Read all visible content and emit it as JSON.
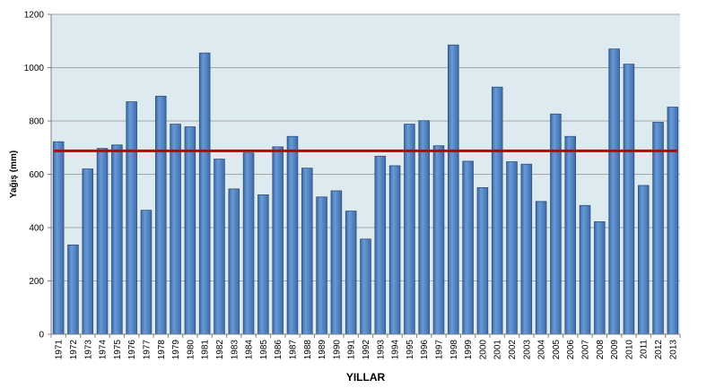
{
  "chart_data": {
    "type": "bar",
    "title": "",
    "xlabel": "YILLAR",
    "ylabel": "Yağış (mm)",
    "ylim": [
      0,
      1200
    ],
    "yticks": [
      0,
      200,
      400,
      600,
      800,
      1000,
      1200
    ],
    "grid": true,
    "legend": "none",
    "categories": [
      "1971",
      "1972",
      "1973",
      "1974",
      "1975",
      "1976",
      "1977",
      "1978",
      "1979",
      "1980",
      "1981",
      "1982",
      "1983",
      "1984",
      "1985",
      "1986",
      "1987",
      "1988",
      "1989",
      "1990",
      "1991",
      "1992",
      "1993",
      "1994",
      "1995",
      "1996",
      "1997",
      "1998",
      "1999",
      "2000",
      "2001",
      "2002",
      "2003",
      "2004",
      "2005",
      "2006",
      "2007",
      "2008",
      "2009",
      "2010",
      "2011",
      "2012",
      "2013"
    ],
    "values": [
      722,
      335,
      620,
      697,
      710,
      872,
      465,
      893,
      788,
      778,
      1055,
      657,
      545,
      680,
      523,
      703,
      742,
      623,
      515,
      538,
      462,
      357,
      668,
      632,
      788,
      801,
      707,
      1085,
      649,
      550,
      927,
      647,
      638,
      498,
      826,
      742,
      483,
      422,
      1070,
      1013,
      558,
      795,
      852
    ],
    "reference_line": {
      "value": 688,
      "color": "#c00000"
    },
    "colors": {
      "bar_fill": "#4f81bd",
      "bar_stroke": "#2f4f7a",
      "plot_background": "#ddebf1",
      "gridline": "#a6a6a6",
      "axis": "#808080"
    }
  }
}
